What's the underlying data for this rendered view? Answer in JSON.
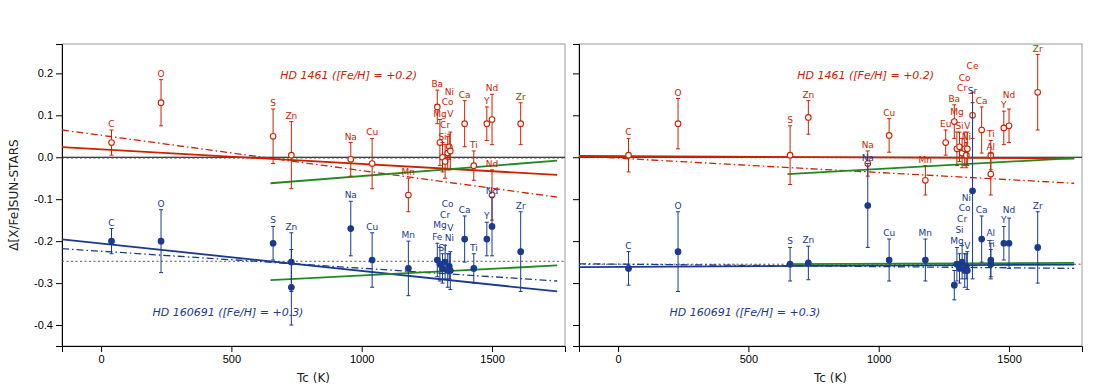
{
  "chart_data": [
    {
      "type": "scatter",
      "xlabel": "Tc (K)",
      "ylabel": "Δ[X/Fe]SUN-STARS",
      "xlim": [
        -150,
        1780
      ],
      "ylim": [
        -0.45,
        0.27
      ],
      "xticks": [
        0,
        500,
        1000,
        1500
      ],
      "yticks": [
        -0.4,
        -0.3,
        -0.2,
        -0.1,
        {
          "value": 0.0,
          "label": "0.0"
        },
        0.1,
        0.2
      ],
      "grid": false,
      "hlines": [
        {
          "value": 0.0,
          "color": "#000000",
          "line_style": "solid"
        },
        {
          "value": -0.002,
          "color": "#555555",
          "line_style": "dotted"
        },
        {
          "value": -0.248,
          "color": "#555555",
          "line_style": "dotted"
        }
      ],
      "annotations": [
        {
          "text": "HD 1461 ([Fe/H] = +0.2)",
          "color": "#cc2200"
        },
        {
          "text": "HD 160691 ([Fe/H] = +0.3)",
          "color": "#1a3a8f"
        }
      ],
      "series": [
        {
          "type": "line",
          "color": "#cc2200",
          "line_style": "solid",
          "x": [
            -150,
            1750
          ],
          "values": [
            0.024,
            -0.042
          ]
        },
        {
          "type": "line",
          "color": "#cc2200",
          "line_style": "dashdot",
          "x": [
            -150,
            1750
          ],
          "values": [
            0.065,
            -0.095
          ]
        },
        {
          "type": "line",
          "color": "#1a3a8f",
          "line_style": "solid",
          "x": [
            -150,
            1750
          ],
          "values": [
            -0.196,
            -0.32
          ]
        },
        {
          "type": "line",
          "color": "#1a3a8f",
          "line_style": "dashdot",
          "x": [
            -150,
            1750
          ],
          "values": [
            -0.218,
            -0.295
          ]
        },
        {
          "type": "line",
          "color": "#228822",
          "line_style": "solid",
          "x": [
            650,
            1750
          ],
          "values": [
            -0.062,
            -0.008
          ]
        },
        {
          "type": "line",
          "color": "#228822",
          "line_style": "solid",
          "x": [
            650,
            1750
          ],
          "values": [
            -0.293,
            -0.258
          ]
        },
        {
          "type": "scatter",
          "color": "#cc2200",
          "marker": "circle-open",
          "x": [
            40,
            230,
            660,
            730,
            958,
            1040,
            1179,
            1290,
            1300,
            1310,
            1320,
            1330,
            1336,
            1340,
            1395,
            1430,
            1480,
            1500,
            1500,
            1610
          ],
          "values": [
            0.035,
            0.13,
            0.05,
            0.005,
            -0.005,
            -0.015,
            -0.09,
            0.12,
            0.035,
            0.0,
            -0.01,
            0.01,
            0.025,
            0.015,
            0.08,
            -0.02,
            0.08,
            0.09,
            -0.09,
            0.08
          ],
          "errors": [
            0.03,
            0.055,
            0.065,
            0.08,
            0.04,
            0.06,
            0.04,
            0.04,
            0.055,
            0.035,
            0.04,
            0.04,
            0.03,
            0.045,
            0.055,
            0.035,
            0.04,
            0.06,
            0.06,
            0.05
          ],
          "point_labels": [
            "C",
            "O",
            "S",
            "Zn",
            "Na",
            "Cu",
            "Mn",
            "Ba",
            "Mg",
            "Si",
            "Cr",
            "Co",
            "Ni",
            "V",
            "Ca",
            "Ti",
            "Y",
            "Nd",
            "Nd",
            "Zr"
          ]
        },
        {
          "type": "scatter",
          "color": "#1a3a8f",
          "marker": "circle",
          "x": [
            40,
            230,
            660,
            730,
            730,
            958,
            1040,
            1179,
            1290,
            1300,
            1310,
            1320,
            1330,
            1336,
            1340,
            1395,
            1430,
            1480,
            1500,
            1610
          ],
          "values": [
            -0.2,
            -0.2,
            -0.205,
            -0.25,
            -0.31,
            -0.17,
            -0.245,
            -0.265,
            -0.245,
            -0.255,
            -0.265,
            -0.25,
            -0.27,
            -0.26,
            -0.27,
            -0.195,
            -0.265,
            -0.195,
            -0.165,
            -0.225
          ],
          "errors": [
            0.03,
            0.075,
            0.04,
            0.07,
            0.09,
            0.065,
            0.065,
            0.065,
            0.04,
            0.04,
            0.035,
            0.04,
            0.04,
            0.03,
            0.045,
            0.055,
            0.035,
            0.04,
            0.07,
            0.095
          ],
          "point_labels": [
            "C",
            "O",
            "S",
            "Zn",
            null,
            "Na",
            "Cu",
            "Mn",
            "Fe",
            "Mg",
            "Si",
            "Cr",
            "Co",
            "Ni",
            "V",
            "Ca",
            "Ti",
            "Y",
            "Nd",
            "Zr"
          ]
        }
      ]
    },
    {
      "type": "scatter",
      "xlabel": "Tc (K)",
      "xlim": [
        -150,
        1780
      ],
      "ylim": [
        -0.45,
        0.27
      ],
      "xticks": [
        0,
        500,
        1000,
        1500
      ],
      "yticks": [
        -0.4,
        -0.3,
        -0.2,
        -0.1,
        {
          "value": 0.0,
          "label": "0.0"
        },
        0.1,
        0.2
      ],
      "tick_labels": "x",
      "grid": false,
      "hlines": [
        {
          "value": 0.0,
          "color": "#000000",
          "line_style": "solid"
        },
        {
          "value": -0.001,
          "color": "#555555",
          "line_style": "dotted"
        },
        {
          "value": -0.255,
          "color": "#555555",
          "line_style": "dotted"
        }
      ],
      "annotations": [
        {
          "text": "HD 1461 ([Fe/H] = +0.2)",
          "color": "#cc2200"
        },
        {
          "text": "HD 160691 ([Fe/H] = +0.3)",
          "color": "#1a3a8f"
        }
      ],
      "series": [
        {
          "type": "line",
          "color": "#cc2200",
          "line_style": "solid",
          "x": [
            -150,
            1750
          ],
          "values": [
            0.003,
            -0.003
          ]
        },
        {
          "type": "line",
          "color": "#cc2200",
          "line_style": "dashdot",
          "x": [
            -150,
            1750
          ],
          "values": [
            0.003,
            -0.062
          ]
        },
        {
          "type": "line",
          "color": "#1a3a8f",
          "line_style": "solid",
          "x": [
            -150,
            1750
          ],
          "values": [
            -0.262,
            -0.256
          ]
        },
        {
          "type": "line",
          "color": "#1a3a8f",
          "line_style": "dashdot",
          "x": [
            -150,
            1750
          ],
          "values": [
            -0.254,
            -0.265
          ]
        },
        {
          "type": "line",
          "color": "#228822",
          "line_style": "solid",
          "x": [
            650,
            1750
          ],
          "values": [
            -0.04,
            -0.002
          ]
        },
        {
          "type": "line",
          "color": "#228822",
          "line_style": "solid",
          "x": [
            650,
            1750
          ],
          "values": [
            -0.255,
            -0.252
          ]
        },
        {
          "type": "scatter",
          "color": "#cc2200",
          "marker": "circle-open",
          "x": [
            40,
            230,
            660,
            730,
            958,
            1040,
            1179,
            1257,
            1290,
            1300,
            1310,
            1320,
            1330,
            1336,
            1340,
            1360,
            1395,
            1430,
            1430,
            1480,
            1500,
            1610
          ],
          "values": [
            0.005,
            0.08,
            0.005,
            0.095,
            -0.015,
            0.052,
            -0.055,
            0.035,
            0.085,
            0.02,
            0.025,
            0.01,
            0.02,
            0.005,
            0.02,
            0.1,
            0.065,
            0.005,
            -0.04,
            0.07,
            0.075,
            0.155
          ],
          "errors": [
            0.04,
            0.06,
            0.07,
            0.04,
            0.03,
            0.04,
            0.035,
            0.03,
            0.04,
            0.04,
            0.035,
            0.035,
            0.04,
            0.03,
            0.04,
            0.055,
            0.055,
            0.035,
            0.05,
            0.04,
            0.04,
            0.09
          ],
          "point_labels": [
            "C",
            "O",
            "S",
            "Zn",
            "Na",
            "Cu",
            "Mn",
            "Eu",
            "Ba",
            "Mg",
            "Si",
            "Cr",
            "Co",
            "Ni",
            "V",
            "Ce",
            "Ca",
            "Ti",
            "Al",
            "Y",
            "Nd",
            "Zr"
          ]
        },
        {
          "type": "scatter",
          "color": "#1a3a8f",
          "marker": "circle",
          "x": [
            40,
            230,
            660,
            730,
            958,
            1040,
            1179,
            1290,
            1300,
            1310,
            1320,
            1330,
            1336,
            1340,
            1360,
            1395,
            1430,
            1430,
            1480,
            1500,
            1610
          ],
          "values": [
            -0.265,
            -0.225,
            -0.255,
            -0.252,
            -0.115,
            -0.245,
            -0.245,
            -0.305,
            -0.255,
            -0.265,
            -0.25,
            -0.27,
            -0.26,
            -0.27,
            -0.08,
            -0.195,
            -0.255,
            -0.245,
            -0.205,
            -0.205,
            -0.215
          ],
          "errors": [
            0.04,
            0.095,
            0.04,
            0.04,
            0.1,
            0.05,
            0.05,
            0.035,
            0.04,
            0.035,
            0.04,
            0.04,
            0.03,
            0.045,
            0.21,
            0.055,
            0.035,
            0.04,
            0.04,
            0.06,
            0.085
          ],
          "point_labels": [
            "C",
            "O",
            "S",
            "Zn",
            "Na",
            "Cu",
            "Mn",
            null,
            "Mg",
            "Si",
            "Cr",
            "Co",
            "Ni",
            "V",
            "Sr",
            "Ca",
            "Ti",
            "Al",
            "Y",
            "Nd",
            "Zr"
          ]
        }
      ]
    }
  ]
}
